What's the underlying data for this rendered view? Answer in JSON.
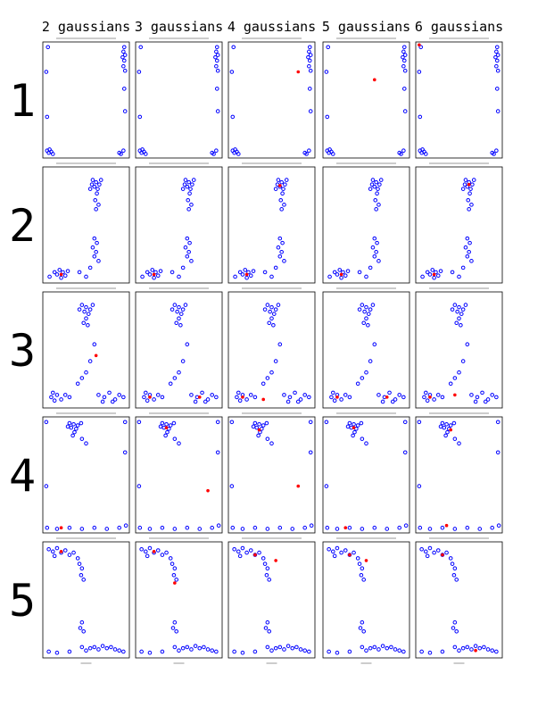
{
  "columns": [
    "2 gaussians",
    "3 gaussians",
    "4 gaussians",
    "5 gaussians",
    "6 gaussians"
  ],
  "point_color": "#0000ff",
  "center_color": "#ff0000",
  "rows": [
    {
      "label": "1",
      "points": [
        [
          0.96,
          0.97
        ],
        [
          0.95,
          0.93
        ],
        [
          0.97,
          0.9
        ],
        [
          0.94,
          0.88
        ],
        [
          0.96,
          0.85
        ],
        [
          0.95,
          0.8
        ],
        [
          0.97,
          0.76
        ],
        [
          0.02,
          0.75
        ],
        [
          0.03,
          0.05
        ],
        [
          0.05,
          0.03
        ],
        [
          0.08,
          0.04
        ],
        [
          0.1,
          0.02
        ],
        [
          0.06,
          0.06
        ],
        [
          0.9,
          0.03
        ],
        [
          0.92,
          0.02
        ],
        [
          0.95,
          0.05
        ],
        [
          0.97,
          0.4
        ],
        [
          0.03,
          0.35
        ],
        [
          0.04,
          0.97
        ],
        [
          0.96,
          0.6
        ]
      ],
      "centers": [
        [],
        [],
        [
          [
            0.82,
            0.75
          ]
        ],
        [
          [
            0.6,
            0.68
          ]
        ],
        [
          [
            0.02,
            0.99
          ]
        ]
      ]
    },
    {
      "label": "2",
      "points": [
        [
          0.58,
          0.9
        ],
        [
          0.62,
          0.88
        ],
        [
          0.66,
          0.86
        ],
        [
          0.6,
          0.84
        ],
        [
          0.64,
          0.82
        ],
        [
          0.57,
          0.86
        ],
        [
          0.68,
          0.9
        ],
        [
          0.55,
          0.82
        ],
        [
          0.63,
          0.78
        ],
        [
          0.61,
          0.72
        ],
        [
          0.65,
          0.68
        ],
        [
          0.62,
          0.64
        ],
        [
          0.6,
          0.38
        ],
        [
          0.63,
          0.34
        ],
        [
          0.58,
          0.3
        ],
        [
          0.62,
          0.26
        ],
        [
          0.6,
          0.22
        ],
        [
          0.65,
          0.18
        ],
        [
          0.55,
          0.12
        ],
        [
          0.18,
          0.1
        ],
        [
          0.22,
          0.08
        ],
        [
          0.15,
          0.06
        ],
        [
          0.25,
          0.05
        ],
        [
          0.2,
          0.03
        ],
        [
          0.12,
          0.08
        ],
        [
          0.28,
          0.09
        ],
        [
          0.42,
          0.08
        ],
        [
          0.5,
          0.04
        ],
        [
          0.06,
          0.04
        ]
      ],
      "centers": [
        [
          [
            0.2,
            0.06
          ]
        ],
        [
          [
            0.2,
            0.06
          ]
        ],
        [
          [
            0.2,
            0.06
          ],
          [
            0.6,
            0.85
          ]
        ],
        [
          [
            0.2,
            0.06
          ]
        ],
        [
          [
            0.2,
            0.06
          ],
          [
            0.62,
            0.86
          ]
        ]
      ]
    },
    {
      "label": "3",
      "points": [
        [
          0.45,
          0.9
        ],
        [
          0.5,
          0.88
        ],
        [
          0.55,
          0.86
        ],
        [
          0.48,
          0.84
        ],
        [
          0.53,
          0.82
        ],
        [
          0.42,
          0.86
        ],
        [
          0.58,
          0.9
        ],
        [
          0.5,
          0.78
        ],
        [
          0.47,
          0.74
        ],
        [
          0.52,
          0.72
        ],
        [
          0.6,
          0.55
        ],
        [
          0.55,
          0.4
        ],
        [
          0.5,
          0.3
        ],
        [
          0.45,
          0.25
        ],
        [
          0.4,
          0.2
        ],
        [
          0.1,
          0.12
        ],
        [
          0.15,
          0.1
        ],
        [
          0.08,
          0.08
        ],
        [
          0.2,
          0.06
        ],
        [
          0.12,
          0.05
        ],
        [
          0.25,
          0.1
        ],
        [
          0.3,
          0.08
        ],
        [
          0.65,
          0.1
        ],
        [
          0.72,
          0.08
        ],
        [
          0.78,
          0.12
        ],
        [
          0.85,
          0.06
        ],
        [
          0.9,
          0.1
        ],
        [
          0.95,
          0.08
        ],
        [
          0.7,
          0.04
        ],
        [
          0.82,
          0.04
        ]
      ],
      "centers": [
        [
          [
            0.62,
            0.45
          ]
        ],
        [
          [
            0.15,
            0.08
          ],
          [
            0.75,
            0.08
          ]
        ],
        [
          [
            0.15,
            0.08
          ],
          [
            0.4,
            0.06
          ]
        ],
        [
          [
            0.15,
            0.08
          ],
          [
            0.75,
            0.08
          ]
        ],
        [
          [
            0.15,
            0.08
          ],
          [
            0.45,
            0.1
          ]
        ]
      ]
    },
    {
      "label": "4",
      "points": [
        [
          0.3,
          0.96
        ],
        [
          0.35,
          0.95
        ],
        [
          0.4,
          0.94
        ],
        [
          0.32,
          0.92
        ],
        [
          0.38,
          0.91
        ],
        [
          0.28,
          0.93
        ],
        [
          0.44,
          0.96
        ],
        [
          0.36,
          0.88
        ],
        [
          0.34,
          0.85
        ],
        [
          0.45,
          0.82
        ],
        [
          0.5,
          0.78
        ],
        [
          0.02,
          0.97
        ],
        [
          0.97,
          0.97
        ],
        [
          0.03,
          0.03
        ],
        [
          0.15,
          0.02
        ],
        [
          0.3,
          0.03
        ],
        [
          0.45,
          0.02
        ],
        [
          0.6,
          0.03
        ],
        [
          0.75,
          0.02
        ],
        [
          0.9,
          0.03
        ],
        [
          0.98,
          0.05
        ],
        [
          0.97,
          0.7
        ],
        [
          0.02,
          0.4
        ]
      ],
      "centers": [
        [
          [
            0.2,
            0.03
          ]
        ],
        [
          [
            0.35,
            0.92
          ],
          [
            0.85,
            0.36
          ]
        ],
        [
          [
            0.35,
            0.9
          ],
          [
            0.82,
            0.4
          ]
        ],
        [
          [
            0.35,
            0.92
          ],
          [
            0.25,
            0.03
          ]
        ],
        [
          [
            0.4,
            0.9
          ],
          [
            0.35,
            0.05
          ]
        ]
      ]
    },
    {
      "label": "5",
      "points": [
        [
          0.05,
          0.95
        ],
        [
          0.1,
          0.93
        ],
        [
          0.15,
          0.96
        ],
        [
          0.2,
          0.92
        ],
        [
          0.25,
          0.94
        ],
        [
          0.3,
          0.9
        ],
        [
          0.35,
          0.92
        ],
        [
          0.12,
          0.89
        ],
        [
          0.4,
          0.87
        ],
        [
          0.42,
          0.82
        ],
        [
          0.45,
          0.78
        ],
        [
          0.44,
          0.72
        ],
        [
          0.47,
          0.68
        ],
        [
          0.45,
          0.3
        ],
        [
          0.43,
          0.25
        ],
        [
          0.47,
          0.22
        ],
        [
          0.45,
          0.08
        ],
        [
          0.05,
          0.04
        ],
        [
          0.15,
          0.03
        ],
        [
          0.3,
          0.04
        ],
        [
          0.5,
          0.05
        ],
        [
          0.55,
          0.07
        ],
        [
          0.6,
          0.08
        ],
        [
          0.65,
          0.06
        ],
        [
          0.7,
          0.09
        ],
        [
          0.75,
          0.07
        ],
        [
          0.8,
          0.08
        ],
        [
          0.85,
          0.06
        ],
        [
          0.9,
          0.05
        ],
        [
          0.95,
          0.04
        ]
      ],
      "centers": [
        [
          [
            0.2,
            0.93
          ]
        ],
        [
          [
            0.2,
            0.93
          ],
          [
            0.45,
            0.65
          ]
        ],
        [
          [
            0.3,
            0.9
          ],
          [
            0.55,
            0.85
          ]
        ],
        [
          [
            0.3,
            0.9
          ],
          [
            0.5,
            0.85
          ]
        ],
        [
          [
            0.3,
            0.9
          ],
          [
            0.7,
            0.05
          ]
        ]
      ]
    }
  ]
}
